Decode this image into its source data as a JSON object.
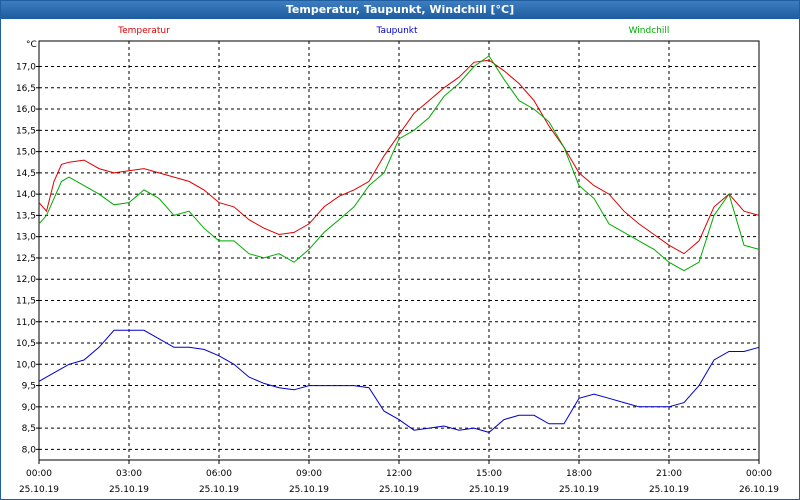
{
  "window": {
    "title": "Temperatur, Taupunkt, Windchill [°C]"
  },
  "chart_data": {
    "type": "line",
    "title": "Temperatur, Taupunkt, Windchill [°C]",
    "ylabel": "°C",
    "ylim": [
      7.75,
      17.6
    ],
    "xlim": [
      0,
      24
    ],
    "grid": true,
    "legend": "top",
    "y_ticks": [
      "8,0",
      "8,5",
      "9,0",
      "9,5",
      "10,0",
      "10,5",
      "11,0",
      "11,5",
      "12,0",
      "12,5",
      "13,0",
      "13,5",
      "14,0",
      "14,5",
      "15,0",
      "15,5",
      "16,0",
      "16,5",
      "17,0"
    ],
    "x_ticks": [
      {
        "time": "00:00",
        "date": "25.10.19"
      },
      {
        "time": "03:00",
        "date": "25.10.19"
      },
      {
        "time": "06:00",
        "date": "25.10.19"
      },
      {
        "time": "09:00",
        "date": "25.10.19"
      },
      {
        "time": "12:00",
        "date": "25.10.19"
      },
      {
        "time": "15:00",
        "date": "25.10.19"
      },
      {
        "time": "18:00",
        "date": "25.10.19"
      },
      {
        "time": "21:00",
        "date": "25.10.19"
      },
      {
        "time": "00:00",
        "date": "26.10.19"
      }
    ],
    "series": [
      {
        "name": "Temperatur",
        "color": "#dd0000",
        "x": [
          0,
          0.25,
          0.5,
          0.75,
          1,
          1.5,
          2,
          2.5,
          3,
          3.5,
          4,
          4.5,
          5,
          5.5,
          6,
          6.5,
          7,
          7.5,
          8,
          8.5,
          9,
          9.5,
          10,
          10.5,
          11,
          11.5,
          12,
          12.5,
          13,
          13.5,
          14,
          14.5,
          15,
          15.5,
          16,
          16.5,
          17,
          17.5,
          18,
          18.5,
          19,
          19.5,
          20,
          20.5,
          21,
          21.5,
          22,
          22.5,
          23,
          23.5,
          24
        ],
        "y": [
          13.8,
          13.6,
          14.3,
          14.7,
          14.75,
          14.8,
          14.6,
          14.5,
          14.55,
          14.6,
          14.5,
          14.4,
          14.3,
          14.1,
          13.8,
          13.7,
          13.4,
          13.2,
          13.05,
          13.1,
          13.3,
          13.7,
          13.95,
          14.1,
          14.3,
          14.9,
          15.4,
          15.9,
          16.2,
          16.5,
          16.75,
          17.1,
          17.15,
          16.9,
          16.6,
          16.2,
          15.6,
          15.1,
          14.5,
          14.2,
          14.0,
          13.6,
          13.3,
          13.05,
          12.8,
          12.6,
          12.9,
          13.7,
          14.0,
          13.6,
          13.5
        ]
      },
      {
        "name": "Taupunkt",
        "color": "#0000cc",
        "x": [
          0,
          0.5,
          1,
          1.5,
          2,
          2.5,
          3,
          3.5,
          4,
          4.5,
          5,
          5.5,
          6,
          6.5,
          7,
          7.5,
          8,
          8.5,
          9,
          9.5,
          10,
          10.5,
          11,
          11.5,
          12,
          12.5,
          13,
          13.5,
          14,
          14.5,
          15,
          15.5,
          16,
          16.5,
          17,
          17.5,
          18,
          18.5,
          19,
          19.5,
          20,
          20.5,
          21,
          21.5,
          22,
          22.5,
          23,
          23.5,
          24
        ],
        "y": [
          9.6,
          9.8,
          10.0,
          10.1,
          10.4,
          10.8,
          10.8,
          10.8,
          10.6,
          10.4,
          10.4,
          10.35,
          10.2,
          10.0,
          9.7,
          9.55,
          9.45,
          9.4,
          9.5,
          9.5,
          9.5,
          9.5,
          9.45,
          8.9,
          8.7,
          8.45,
          8.5,
          8.55,
          8.45,
          8.5,
          8.4,
          8.7,
          8.8,
          8.8,
          8.6,
          8.6,
          9.2,
          9.3,
          9.2,
          9.1,
          9.0,
          9.0,
          9.0,
          9.1,
          9.5,
          10.1,
          10.3,
          10.3,
          10.4
        ]
      },
      {
        "name": "Windchill",
        "color": "#00aa00",
        "x": [
          0,
          0.25,
          0.5,
          0.75,
          1,
          1.5,
          2,
          2.5,
          3,
          3.5,
          4,
          4.5,
          5,
          5.5,
          6,
          6.5,
          7,
          7.5,
          8,
          8.5,
          9,
          9.5,
          10,
          10.5,
          11,
          11.5,
          12,
          12.5,
          13,
          13.5,
          14,
          14.5,
          15,
          15.5,
          16,
          16.5,
          17,
          17.5,
          18,
          18.5,
          19,
          19.5,
          20,
          20.5,
          21,
          21.5,
          22,
          22.5,
          23,
          23.5,
          24
        ],
        "y": [
          13.3,
          13.5,
          13.9,
          14.3,
          14.4,
          14.2,
          14.0,
          13.75,
          13.8,
          14.1,
          13.9,
          13.5,
          13.6,
          13.2,
          12.9,
          12.9,
          12.6,
          12.5,
          12.6,
          12.4,
          12.7,
          13.1,
          13.4,
          13.7,
          14.2,
          14.5,
          15.3,
          15.5,
          15.8,
          16.3,
          16.6,
          17.0,
          17.25,
          16.7,
          16.2,
          16.0,
          15.7,
          15.1,
          14.2,
          13.9,
          13.3,
          13.1,
          12.9,
          12.7,
          12.4,
          12.2,
          12.4,
          13.5,
          14.0,
          12.8,
          12.7
        ]
      }
    ]
  }
}
